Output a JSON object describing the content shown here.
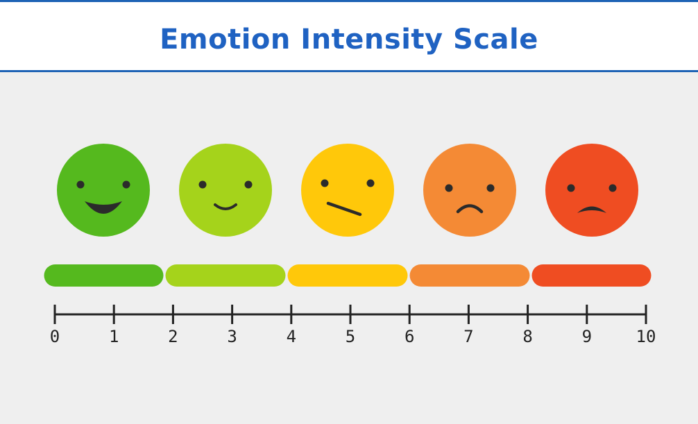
{
  "title": "Emotion Intensity Scale",
  "colors": {
    "title": "#1f62c2",
    "header_border": "#1e63b5",
    "background": "#efefef",
    "axis": "#222222",
    "face_features": "#2b2b2b"
  },
  "faces": [
    {
      "name": "face-very-happy",
      "expression": "big-smile",
      "color": "#55b91e"
    },
    {
      "name": "face-happy",
      "expression": "small-smile",
      "color": "#a5d31b"
    },
    {
      "name": "face-neutral",
      "expression": "slanted-line",
      "color": "#ffc80a"
    },
    {
      "name": "face-sad",
      "expression": "frown",
      "color": "#f48a35"
    },
    {
      "name": "face-very-sad",
      "expression": "deep-frown",
      "color": "#ef4d22"
    }
  ],
  "segments": [
    {
      "from": 0,
      "to": 2,
      "color": "#55b91e"
    },
    {
      "from": 2,
      "to": 4,
      "color": "#a5d31b"
    },
    {
      "from": 4,
      "to": 6,
      "color": "#ffc80a"
    },
    {
      "from": 6,
      "to": 8,
      "color": "#f48a35"
    },
    {
      "from": 8,
      "to": 10,
      "color": "#ef4d22"
    }
  ],
  "ticks": [
    "0",
    "1",
    "2",
    "3",
    "4",
    "5",
    "6",
    "7",
    "8",
    "9",
    "10"
  ]
}
